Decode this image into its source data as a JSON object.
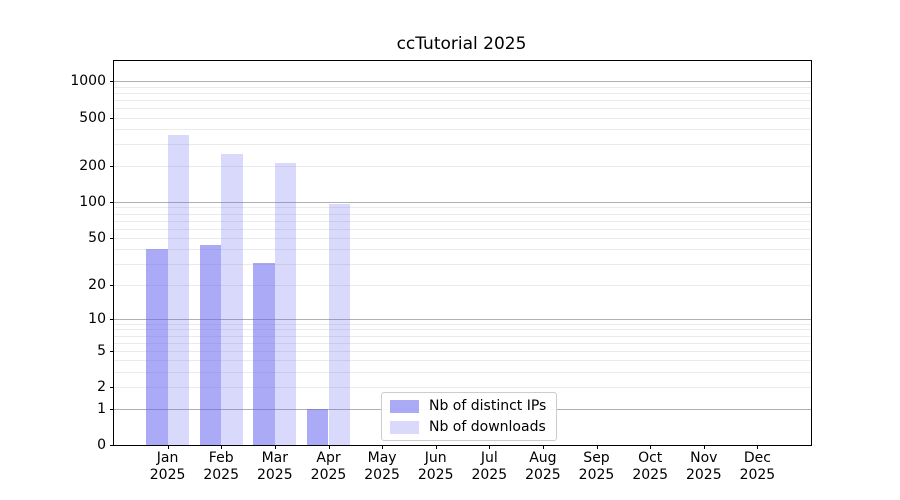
{
  "figure": {
    "background": "#ffffff"
  },
  "chart_data": {
    "type": "bar",
    "title": "ccTutorial 2025",
    "y_scale": "log10(1+y)",
    "year": "2025",
    "months": [
      "Jan",
      "Feb",
      "Mar",
      "Apr",
      "May",
      "Jun",
      "Jul",
      "Aug",
      "Sep",
      "Oct",
      "Nov",
      "Dec"
    ],
    "series": [
      {
        "name": "Nb of distinct IPs",
        "color": "#aaaaf6",
        "base_rgb": [
          95,
          95,
          238
        ],
        "alpha": 0.53,
        "values": [
          40,
          44,
          31,
          1,
          0,
          0,
          0,
          0,
          0,
          0,
          0,
          0
        ]
      },
      {
        "name": "Nb of downloads",
        "color": "#d9d9f8",
        "base_rgb": [
          95,
          95,
          238
        ],
        "alpha": 0.24,
        "values": [
          360,
          250,
          210,
          97,
          0,
          0,
          0,
          0,
          0,
          0,
          0,
          0
        ]
      }
    ],
    "y_ticks": [
      0,
      1,
      2,
      5,
      10,
      20,
      50,
      100,
      200,
      500,
      1000
    ],
    "ylim": [
      0,
      1465
    ],
    "grid": {
      "major_values": [
        1,
        10,
        100,
        1000
      ],
      "minor_values": [
        2,
        3,
        4,
        5,
        6,
        7,
        8,
        9,
        20,
        30,
        40,
        50,
        60,
        70,
        80,
        90,
        200,
        300,
        400,
        500,
        600,
        700,
        800,
        900
      ],
      "major_color": "#b0b0b0",
      "minor_color": "#ebebeb"
    },
    "legend_position": "lower center",
    "axis_color": "#000000"
  }
}
